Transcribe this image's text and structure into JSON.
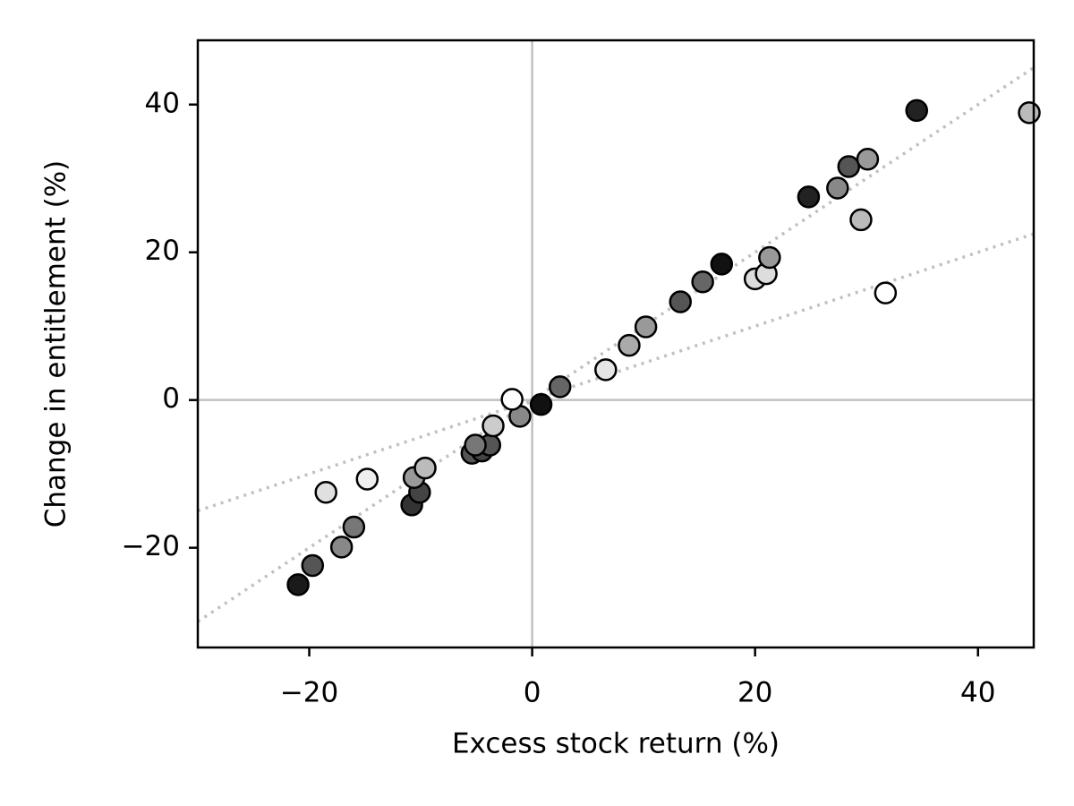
{
  "chart_data": {
    "type": "scatter",
    "xlabel": "Excess stock return (%)",
    "ylabel": "Change in entitlement (%)",
    "xlim": [
      -30,
      45
    ],
    "ylim": [
      -33.5,
      48.7
    ],
    "xticks": [
      {
        "value": -20,
        "label": "−20"
      },
      0,
      20,
      40
    ],
    "yticks": [
      {
        "value": -20,
        "label": "−20"
      },
      0,
      20,
      40
    ],
    "zero_lines": true,
    "reference_lines": [
      {
        "x": [
          -30,
          45
        ],
        "y": [
          -30,
          45
        ]
      },
      {
        "x": [
          -30,
          45
        ],
        "y": [
          -15,
          22.5
        ]
      }
    ],
    "x": [
      -21.0,
      -19.7,
      -17.1,
      -16.0,
      -18.5,
      -14.8,
      -10.8,
      -10.1,
      -10.6,
      -9.6,
      -5.4,
      -4.5,
      -3.8,
      -5.1,
      -3.5,
      -1.1,
      -1.8,
      0.8,
      2.5,
      6.6,
      8.7,
      10.2,
      13.3,
      15.3,
      17.0,
      20.0,
      21.0,
      21.3,
      24.8,
      27.4,
      28.4,
      30.1,
      29.5,
      31.7,
      34.5,
      44.6
    ],
    "y": [
      -25.0,
      -22.4,
      -19.9,
      -17.2,
      -12.5,
      -10.7,
      -14.2,
      -12.5,
      -10.5,
      -9.2,
      -7.2,
      -6.9,
      -6.1,
      -6.1,
      -3.5,
      -2.2,
      0.1,
      -0.6,
      1.8,
      4.1,
      7.4,
      9.9,
      13.3,
      16.0,
      18.4,
      16.4,
      17.1,
      19.3,
      27.5,
      28.7,
      31.6,
      32.6,
      24.4,
      14.5,
      39.2,
      38.9
    ],
    "colors": [
      "#1a1a1a",
      "#555555",
      "#888888",
      "#777777",
      "#e0e0e0",
      "#eeeeee",
      "#333333",
      "#444444",
      "#999999",
      "#bbbbbb",
      "#555555",
      "#444444",
      "#555555",
      "#777777",
      "#cccccc",
      "#888888",
      "#ffffff",
      "#111111",
      "#666666",
      "#e5e5e5",
      "#aaaaaa",
      "#999999",
      "#555555",
      "#666666",
      "#111111",
      "#dddddd",
      "#dddddd",
      "#999999",
      "#222222",
      "#888888",
      "#555555",
      "#999999",
      "#bbbbbb",
      "#ffffff",
      "#222222",
      "#bbbbbb"
    ]
  }
}
